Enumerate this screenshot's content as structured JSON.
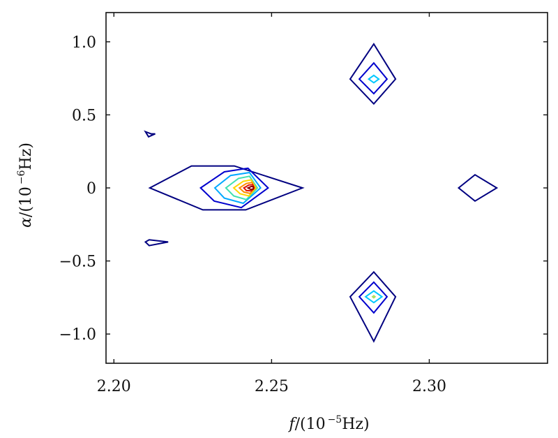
{
  "chart_data": {
    "type": "contour",
    "xlabel_var": "f",
    "xlabel_unit": "/(10",
    "xlabel_exp": "−5",
    "xlabel_tail": "Hz)",
    "ylabel_var": "α",
    "ylabel_unit": "/(10",
    "ylabel_exp": "−6",
    "ylabel_tail": "Hz)",
    "xlim": [
      2.1975,
      2.3375
    ],
    "ylim": [
      -1.2,
      1.2
    ],
    "x_ticks": [
      {
        "value": 2.2,
        "label": "2.20"
      },
      {
        "value": 2.25,
        "label": "2.25"
      },
      {
        "value": 2.3,
        "label": "2.30"
      }
    ],
    "y_ticks": [
      {
        "value": 1.0,
        "label": "1.0"
      },
      {
        "value": 0.5,
        "label": "0.5"
      },
      {
        "value": 0.0,
        "label": "0"
      },
      {
        "value": -0.5,
        "label": "−0.5"
      },
      {
        "value": -1.0,
        "label": "−1.0"
      }
    ],
    "grid": false,
    "contours": [
      {
        "level": 1,
        "color": "#000080",
        "points": [
          [
            2.2114,
            0.0
          ],
          [
            2.2246,
            0.15
          ],
          [
            2.2382,
            0.15
          ],
          [
            2.2598,
            0.0
          ],
          [
            2.2418,
            -0.15
          ],
          [
            2.2282,
            -0.15
          ]
        ]
      },
      {
        "level": 2,
        "color": "#0000cd",
        "points": [
          [
            2.2275,
            0.0
          ],
          [
            2.235,
            0.11
          ],
          [
            2.2425,
            0.135
          ],
          [
            2.2489,
            0.0
          ],
          [
            2.2404,
            -0.135
          ],
          [
            2.2318,
            -0.09
          ]
        ]
      },
      {
        "level": 3,
        "color": "#00a8ff",
        "points": [
          [
            2.232,
            0.0
          ],
          [
            2.237,
            0.085
          ],
          [
            2.243,
            0.105
          ],
          [
            2.2465,
            0.0
          ],
          [
            2.241,
            -0.105
          ],
          [
            2.235,
            -0.07
          ]
        ]
      },
      {
        "level": 4,
        "color": "#40e0b0",
        "points": [
          [
            2.2355,
            0.0
          ],
          [
            2.2395,
            0.065
          ],
          [
            2.243,
            0.08
          ],
          [
            2.2455,
            0.0
          ],
          [
            2.242,
            -0.08
          ],
          [
            2.238,
            -0.055
          ]
        ]
      },
      {
        "level": 5,
        "color": "#ffd700",
        "points": [
          [
            2.238,
            0.0
          ],
          [
            2.241,
            0.045
          ],
          [
            2.2435,
            0.055
          ],
          [
            2.245,
            0.0
          ],
          [
            2.2428,
            -0.055
          ],
          [
            2.24,
            -0.04
          ]
        ]
      },
      {
        "level": 6,
        "color": "#ff8c00",
        "points": [
          [
            2.2398,
            0.0
          ],
          [
            2.242,
            0.03
          ],
          [
            2.2438,
            0.038
          ],
          [
            2.2446,
            0.0
          ],
          [
            2.2432,
            -0.038
          ],
          [
            2.2412,
            -0.028
          ]
        ]
      },
      {
        "level": 7,
        "color": "#dd1100",
        "points": [
          [
            2.2412,
            0.0
          ],
          [
            2.2428,
            0.02
          ],
          [
            2.244,
            0.022
          ],
          [
            2.2444,
            0.0
          ],
          [
            2.2436,
            -0.02
          ],
          [
            2.242,
            -0.018
          ]
        ]
      },
      {
        "level": 8,
        "color": "#8b0000",
        "points": [
          [
            2.2425,
            0.0
          ],
          [
            2.2436,
            0.01
          ],
          [
            2.2442,
            0.008
          ],
          [
            2.2442,
            -0.008
          ],
          [
            2.2434,
            -0.01
          ]
        ]
      },
      {
        "level": 1,
        "color": "#000080",
        "points": [
          [
            2.2749,
            0.745
          ],
          [
            2.2824,
            0.985
          ],
          [
            2.2893,
            0.745
          ],
          [
            2.2824,
            0.575
          ]
        ]
      },
      {
        "level": 2,
        "color": "#0000cd",
        "points": [
          [
            2.2778,
            0.745
          ],
          [
            2.2824,
            0.855
          ],
          [
            2.2866,
            0.745
          ],
          [
            2.2824,
            0.645
          ]
        ]
      },
      {
        "level": 3,
        "color": "#00c8ff",
        "points": [
          [
            2.2808,
            0.745
          ],
          [
            2.2824,
            0.77
          ],
          [
            2.284,
            0.745
          ],
          [
            2.2824,
            0.72
          ]
        ]
      },
      {
        "level": 1,
        "color": "#000080",
        "points": [
          [
            2.2749,
            -0.745
          ],
          [
            2.2824,
            -0.575
          ],
          [
            2.2893,
            -0.745
          ],
          [
            2.2824,
            -1.05
          ]
        ]
      },
      {
        "level": 2,
        "color": "#0000cd",
        "points": [
          [
            2.2778,
            -0.745
          ],
          [
            2.2824,
            -0.645
          ],
          [
            2.2866,
            -0.745
          ],
          [
            2.2824,
            -0.855
          ]
        ]
      },
      {
        "level": 3,
        "color": "#00c8ff",
        "points": [
          [
            2.2798,
            -0.745
          ],
          [
            2.2824,
            -0.705
          ],
          [
            2.285,
            -0.745
          ],
          [
            2.2824,
            -0.785
          ]
        ]
      },
      {
        "level": 4,
        "color": "#a8e060",
        "points": [
          [
            2.282,
            -0.745
          ],
          [
            2.2824,
            -0.738
          ],
          [
            2.2828,
            -0.745
          ],
          [
            2.2824,
            -0.752
          ]
        ]
      },
      {
        "level": 1,
        "color": "#000080",
        "points": [
          [
            2.3093,
            0.0
          ],
          [
            2.3145,
            0.09
          ],
          [
            2.3214,
            0.0
          ],
          [
            2.3145,
            -0.09
          ]
        ]
      },
      {
        "level": 1,
        "color": "#000080",
        "points": [
          [
            2.21,
            0.385
          ],
          [
            2.2118,
            0.37
          ],
          [
            2.2131,
            0.37
          ],
          [
            2.211,
            0.35
          ]
        ]
      },
      {
        "level": 1,
        "color": "#000080",
        "points": [
          [
            2.21,
            -0.37
          ],
          [
            2.2112,
            -0.355
          ],
          [
            2.2172,
            -0.37
          ],
          [
            2.2112,
            -0.395
          ]
        ]
      }
    ]
  }
}
